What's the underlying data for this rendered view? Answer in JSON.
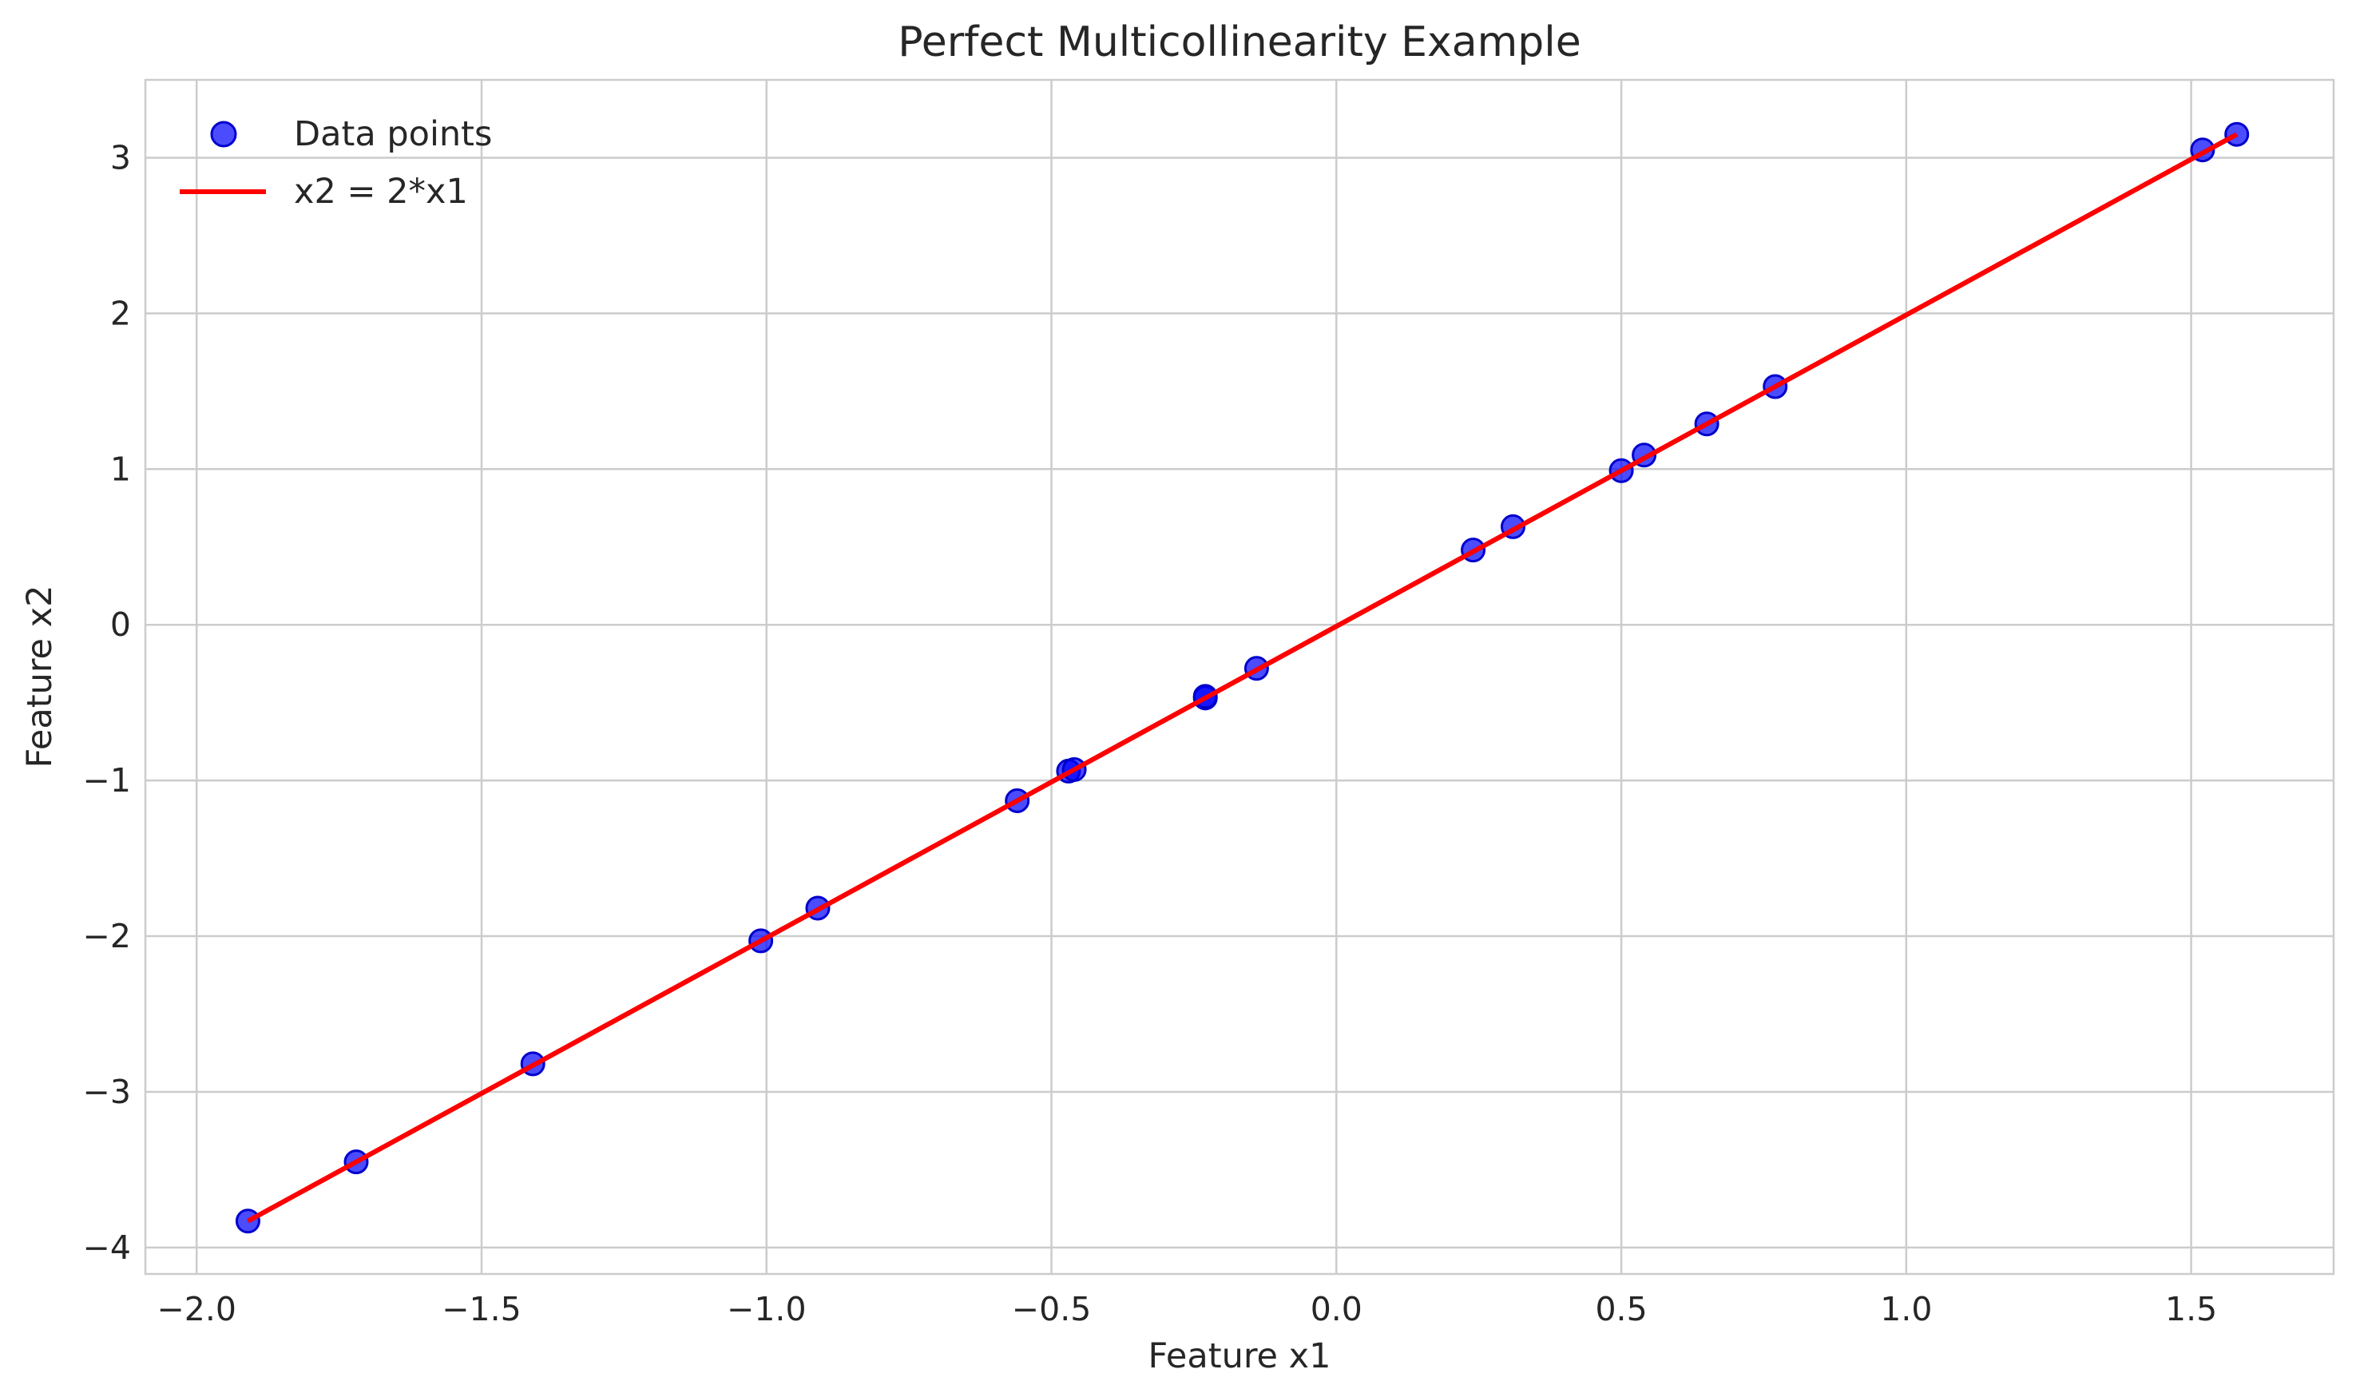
{
  "chart_data": {
    "type": "scatter",
    "title": "Perfect Multicollinearity Example",
    "xlabel": "Feature x1",
    "ylabel": "Feature x2",
    "xlim": [
      -2.09,
      1.75
    ],
    "ylim": [
      -4.17,
      3.5
    ],
    "x_ticks": [
      -2.0,
      -1.5,
      -1.0,
      -0.5,
      0.0,
      0.5,
      1.0,
      1.5
    ],
    "x_tick_labels": [
      "−2.0",
      "−1.5",
      "−1.0",
      "−0.5",
      "0.0",
      "0.5",
      "1.0",
      "1.5"
    ],
    "y_ticks": [
      -4,
      -3,
      -2,
      -1,
      0,
      1,
      2,
      3
    ],
    "y_tick_labels": [
      "−4",
      "−3",
      "−2",
      "−1",
      "0",
      "1",
      "2",
      "3"
    ],
    "grid": true,
    "legend_position": "top-left",
    "series": [
      {
        "name": "Data points",
        "kind": "scatter",
        "color": "#0000ff",
        "points": [
          {
            "x": -1.91,
            "y": -3.83
          },
          {
            "x": -1.72,
            "y": -3.45
          },
          {
            "x": -1.41,
            "y": -2.82
          },
          {
            "x": -1.01,
            "y": -2.03
          },
          {
            "x": -0.91,
            "y": -1.82
          },
          {
            "x": -0.56,
            "y": -1.13
          },
          {
            "x": -0.47,
            "y": -0.94
          },
          {
            "x": -0.46,
            "y": -0.93
          },
          {
            "x": -0.23,
            "y": -0.47
          },
          {
            "x": -0.23,
            "y": -0.46
          },
          {
            "x": -0.14,
            "y": -0.28
          },
          {
            "x": 0.24,
            "y": 0.48
          },
          {
            "x": 0.31,
            "y": 0.63
          },
          {
            "x": 0.5,
            "y": 0.99
          },
          {
            "x": 0.54,
            "y": 1.09
          },
          {
            "x": 0.65,
            "y": 1.29
          },
          {
            "x": 0.77,
            "y": 1.53
          },
          {
            "x": 1.52,
            "y": 3.05
          },
          {
            "x": 1.58,
            "y": 3.15
          }
        ]
      },
      {
        "name": "x2 = 2*x1",
        "kind": "line",
        "color": "#ff0000",
        "points": [
          {
            "x": -1.91,
            "y": -3.83
          },
          {
            "x": 1.58,
            "y": 3.15
          }
        ]
      }
    ]
  }
}
